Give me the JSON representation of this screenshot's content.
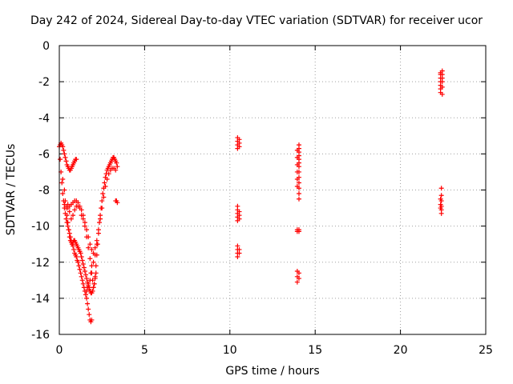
{
  "chart_data": {
    "type": "scatter",
    "title": "Day 242 of 2024, Sidereal Day-to-day VTEC variation (SDTVAR) for receiver ucor",
    "xlabel": "GPS time / hours",
    "ylabel": "SDTVAR / TECUs",
    "xlim": [
      0,
      25
    ],
    "ylim": [
      -16,
      0
    ],
    "xticks": [
      0,
      5,
      10,
      15,
      20,
      25
    ],
    "yticks": [
      0,
      -2,
      -4,
      -6,
      -8,
      -10,
      -12,
      -14,
      -16
    ],
    "grid": true,
    "legend": "none",
    "marker": "+",
    "color": "#ff0000",
    "series": [
      {
        "points": [
          [
            0.0,
            -5.6
          ],
          [
            0.05,
            -6.3
          ],
          [
            0.1,
            -7.0
          ],
          [
            0.15,
            -7.6
          ],
          [
            0.2,
            -8.2
          ],
          [
            0.25,
            -8.6
          ],
          [
            0.3,
            -9.0
          ],
          [
            0.35,
            -9.3
          ],
          [
            0.4,
            -9.6
          ],
          [
            0.45,
            -9.8
          ],
          [
            0.5,
            -10.0
          ],
          [
            0.55,
            -10.2
          ],
          [
            0.6,
            -10.4
          ],
          [
            0.65,
            -10.6
          ],
          [
            0.7,
            -10.8
          ],
          [
            0.75,
            -11.0
          ],
          [
            0.8,
            -11.1
          ],
          [
            0.85,
            -11.3
          ],
          [
            0.9,
            -11.5
          ],
          [
            0.95,
            -11.6
          ],
          [
            1.0,
            -11.7
          ],
          [
            1.05,
            -11.9
          ],
          [
            1.1,
            -12.0
          ],
          [
            1.15,
            -12.2
          ],
          [
            1.2,
            -12.4
          ],
          [
            1.25,
            -12.6
          ],
          [
            1.3,
            -12.8
          ],
          [
            1.35,
            -13.0
          ],
          [
            1.4,
            -13.2
          ],
          [
            1.45,
            -13.4
          ],
          [
            1.5,
            -13.6
          ],
          [
            1.55,
            -13.8
          ],
          [
            1.6,
            -14.0
          ],
          [
            1.65,
            -14.3
          ],
          [
            1.7,
            -14.6
          ],
          [
            1.75,
            -14.9
          ],
          [
            1.8,
            -15.2
          ],
          [
            1.85,
            -15.3
          ],
          [
            1.9,
            -15.2
          ],
          [
            1.6,
            -13.6
          ],
          [
            1.65,
            -13.4
          ],
          [
            1.7,
            -13.2
          ],
          [
            1.75,
            -13.4
          ],
          [
            1.8,
            -13.0
          ],
          [
            1.85,
            -12.6
          ],
          [
            1.9,
            -12.6
          ],
          [
            1.95,
            -13.0
          ],
          [
            2.0,
            -13.4
          ],
          [
            2.05,
            -13.2
          ],
          [
            2.1,
            -12.8
          ],
          [
            2.15,
            -12.2
          ],
          [
            2.2,
            -11.6
          ],
          [
            2.25,
            -11.0
          ],
          [
            2.3,
            -10.4
          ],
          [
            2.35,
            -9.8
          ],
          [
            2.4,
            -9.4
          ],
          [
            2.45,
            -9.0
          ],
          [
            2.5,
            -8.6
          ],
          [
            2.55,
            -8.2
          ],
          [
            2.6,
            -7.9
          ],
          [
            2.65,
            -7.6
          ],
          [
            2.7,
            -7.3
          ],
          [
            2.75,
            -7.1
          ],
          [
            2.8,
            -6.9
          ],
          [
            2.85,
            -6.8
          ],
          [
            2.9,
            -6.7
          ],
          [
            2.95,
            -6.6
          ],
          [
            3.0,
            -6.5
          ],
          [
            3.05,
            -6.4
          ],
          [
            3.1,
            -6.3
          ],
          [
            3.15,
            -6.2
          ],
          [
            3.2,
            -6.2
          ],
          [
            3.25,
            -6.3
          ],
          [
            3.3,
            -6.4
          ],
          [
            3.35,
            -6.5
          ],
          [
            3.4,
            -6.7
          ],
          [
            0.05,
            -5.5
          ],
          [
            0.1,
            -5.4
          ],
          [
            0.15,
            -5.5
          ],
          [
            0.2,
            -5.6
          ],
          [
            0.25,
            -5.8
          ],
          [
            0.3,
            -6.0
          ],
          [
            0.35,
            -6.2
          ],
          [
            0.4,
            -6.4
          ],
          [
            0.45,
            -6.6
          ],
          [
            0.5,
            -6.7
          ],
          [
            0.55,
            -6.8
          ],
          [
            0.6,
            -6.9
          ],
          [
            0.65,
            -6.9
          ],
          [
            0.7,
            -6.8
          ],
          [
            0.75,
            -6.7
          ],
          [
            0.8,
            -6.6
          ],
          [
            0.85,
            -6.5
          ],
          [
            0.9,
            -6.4
          ],
          [
            0.95,
            -6.3
          ],
          [
            1.0,
            -6.3
          ],
          [
            0.2,
            -7.4
          ],
          [
            0.3,
            -8.0
          ],
          [
            0.35,
            -8.6
          ],
          [
            0.4,
            -9.0
          ],
          [
            0.45,
            -9.4
          ],
          [
            0.5,
            -9.8
          ],
          [
            0.55,
            -10.2
          ],
          [
            0.6,
            -10.6
          ],
          [
            0.65,
            -10.8
          ],
          [
            0.7,
            -10.9
          ],
          [
            0.75,
            -11.0
          ],
          [
            0.8,
            -10.9
          ],
          [
            0.85,
            -10.8
          ],
          [
            0.9,
            -10.8
          ],
          [
            0.95,
            -10.9
          ],
          [
            1.0,
            -11.0
          ],
          [
            1.05,
            -11.1
          ],
          [
            1.1,
            -11.2
          ],
          [
            1.15,
            -11.3
          ],
          [
            1.2,
            -11.4
          ],
          [
            1.25,
            -11.5
          ],
          [
            1.3,
            -11.7
          ],
          [
            1.35,
            -11.9
          ],
          [
            1.4,
            -12.1
          ],
          [
            1.45,
            -12.3
          ],
          [
            1.5,
            -12.5
          ],
          [
            1.55,
            -12.7
          ],
          [
            1.6,
            -12.9
          ],
          [
            1.65,
            -13.1
          ],
          [
            1.7,
            -13.3
          ],
          [
            1.75,
            -13.5
          ],
          [
            1.8,
            -13.6
          ],
          [
            1.85,
            -13.7
          ],
          [
            1.9,
            -13.7
          ],
          [
            1.95,
            -13.6
          ],
          [
            2.0,
            -13.4
          ],
          [
            2.05,
            -13.2
          ],
          [
            2.1,
            -12.9
          ],
          [
            2.15,
            -12.6
          ],
          [
            0.3,
            -8.8
          ],
          [
            0.4,
            -8.9
          ],
          [
            0.5,
            -9.0
          ],
          [
            0.6,
            -8.9
          ],
          [
            0.7,
            -8.8
          ],
          [
            0.8,
            -8.7
          ],
          [
            0.9,
            -8.6
          ],
          [
            1.0,
            -8.6
          ],
          [
            1.1,
            -8.7
          ],
          [
            1.2,
            -8.9
          ],
          [
            1.3,
            -9.1
          ],
          [
            1.4,
            -9.4
          ],
          [
            1.5,
            -9.8
          ],
          [
            1.6,
            -10.2
          ],
          [
            1.7,
            -10.6
          ],
          [
            1.8,
            -11.0
          ],
          [
            1.9,
            -11.3
          ],
          [
            2.0,
            -11.5
          ],
          [
            2.1,
            -11.2
          ],
          [
            2.2,
            -10.8
          ],
          [
            2.3,
            -10.2
          ],
          [
            2.4,
            -9.6
          ],
          [
            2.5,
            -9.0
          ],
          [
            2.6,
            -8.4
          ],
          [
            2.7,
            -7.8
          ],
          [
            2.8,
            -7.4
          ],
          [
            2.9,
            -7.1
          ],
          [
            3.0,
            -6.9
          ],
          [
            3.1,
            -6.8
          ],
          [
            3.2,
            -6.8
          ],
          [
            3.3,
            -6.9
          ],
          [
            0.5,
            -8.8
          ],
          [
            0.6,
            -9.2
          ],
          [
            0.7,
            -9.6
          ],
          [
            0.8,
            -9.4
          ],
          [
            0.9,
            -9.1
          ],
          [
            1.0,
            -8.9
          ],
          [
            1.1,
            -8.9
          ],
          [
            1.2,
            -9.0
          ],
          [
            1.3,
            -9.4
          ],
          [
            1.4,
            -9.6
          ],
          [
            1.5,
            -10.0
          ],
          [
            1.6,
            -10.6
          ],
          [
            1.7,
            -11.2
          ],
          [
            1.8,
            -11.8
          ],
          [
            1.9,
            -12.2
          ],
          [
            2.0,
            -12.0
          ],
          [
            2.1,
            -11.6
          ],
          [
            2.2,
            -11.0
          ],
          [
            3.3,
            -8.6
          ],
          [
            3.35,
            -8.6
          ],
          [
            3.4,
            -8.7
          ]
        ]
      },
      {
        "points": [
          [
            10.45,
            -5.1
          ],
          [
            10.45,
            -5.3
          ],
          [
            10.45,
            -5.5
          ],
          [
            10.45,
            -5.7
          ],
          [
            10.55,
            -5.2
          ],
          [
            10.55,
            -5.4
          ],
          [
            10.55,
            -5.6
          ],
          [
            10.45,
            -8.9
          ],
          [
            10.45,
            -9.1
          ],
          [
            10.45,
            -9.3
          ],
          [
            10.45,
            -9.5
          ],
          [
            10.45,
            -9.7
          ],
          [
            10.55,
            -9.2
          ],
          [
            10.55,
            -9.4
          ],
          [
            10.55,
            -9.6
          ],
          [
            10.45,
            -11.1
          ],
          [
            10.45,
            -11.3
          ],
          [
            10.45,
            -11.5
          ],
          [
            10.45,
            -11.7
          ],
          [
            10.55,
            -11.3
          ],
          [
            10.55,
            -11.5
          ]
        ]
      },
      {
        "points": [
          [
            14.05,
            -5.5
          ],
          [
            14.05,
            -5.7
          ],
          [
            14.05,
            -5.9
          ],
          [
            14.05,
            -6.1
          ],
          [
            14.05,
            -6.3
          ],
          [
            14.05,
            -6.5
          ],
          [
            14.05,
            -6.7
          ],
          [
            14.05,
            -7.0
          ],
          [
            14.05,
            -7.3
          ],
          [
            14.05,
            -7.6
          ],
          [
            14.05,
            -7.9
          ],
          [
            14.05,
            -8.2
          ],
          [
            14.05,
            -8.5
          ],
          [
            13.95,
            -5.8
          ],
          [
            13.95,
            -6.2
          ],
          [
            13.95,
            -6.6
          ],
          [
            13.95,
            -7.0
          ],
          [
            13.95,
            -7.4
          ],
          [
            13.95,
            -7.8
          ],
          [
            13.95,
            -10.2
          ],
          [
            14.05,
            -10.2
          ],
          [
            14.05,
            -10.3
          ],
          [
            13.95,
            -10.3
          ],
          [
            13.95,
            -12.5
          ],
          [
            13.95,
            -12.8
          ],
          [
            13.95,
            -13.1
          ],
          [
            14.05,
            -12.6
          ],
          [
            14.05,
            -12.9
          ]
        ]
      },
      {
        "points": [
          [
            22.35,
            -1.5
          ],
          [
            22.35,
            -1.6
          ],
          [
            22.35,
            -1.8
          ],
          [
            22.35,
            -2.0
          ],
          [
            22.35,
            -2.2
          ],
          [
            22.35,
            -2.4
          ],
          [
            22.35,
            -2.6
          ],
          [
            22.45,
            -1.4
          ],
          [
            22.45,
            -1.6
          ],
          [
            22.45,
            -1.8
          ],
          [
            22.45,
            -2.0
          ],
          [
            22.45,
            -2.3
          ],
          [
            22.45,
            -2.7
          ],
          [
            22.4,
            -7.9
          ],
          [
            22.4,
            -8.3
          ],
          [
            22.4,
            -8.6
          ],
          [
            22.4,
            -8.9
          ],
          [
            22.4,
            -9.1
          ],
          [
            22.4,
            -9.3
          ],
          [
            22.35,
            -8.5
          ],
          [
            22.35,
            -8.8
          ],
          [
            22.35,
            -9.0
          ]
        ]
      }
    ]
  }
}
